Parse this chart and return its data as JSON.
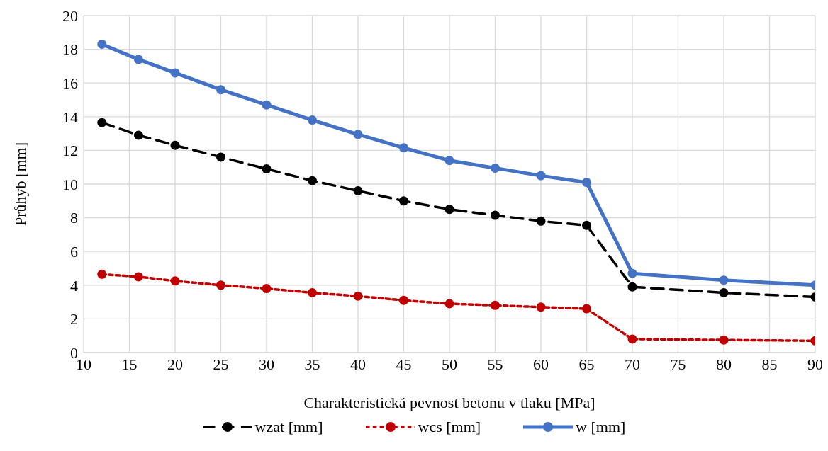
{
  "chart_data": {
    "type": "line",
    "xlabel": "Charakteristická pevnost betonu v tlaku [MPa]",
    "ylabel": "Průhyb [mm]",
    "x": [
      12,
      16,
      20,
      25,
      30,
      35,
      40,
      45,
      50,
      55,
      60,
      65,
      70,
      80,
      90
    ],
    "series": [
      {
        "name": "wzat [mm]",
        "color": "#000000",
        "line_style": "dashed",
        "values": [
          13.65,
          12.9,
          12.3,
          11.6,
          10.9,
          10.2,
          9.6,
          9.0,
          8.5,
          8.15,
          7.8,
          7.55,
          3.9,
          3.55,
          3.3
        ]
      },
      {
        "name": "wcs [mm]",
        "color": "#c00000",
        "line_style": "dotted",
        "values": [
          4.65,
          4.5,
          4.25,
          4.0,
          3.8,
          3.55,
          3.35,
          3.1,
          2.9,
          2.8,
          2.7,
          2.6,
          0.8,
          0.75,
          0.7
        ]
      },
      {
        "name": "w [mm]",
        "color": "#4472c4",
        "line_style": "solid",
        "values": [
          18.3,
          17.4,
          16.6,
          15.6,
          14.7,
          13.8,
          12.95,
          12.15,
          11.4,
          10.95,
          10.5,
          10.1,
          4.7,
          4.3,
          4.0
        ]
      }
    ],
    "xlim": [
      10,
      90
    ],
    "xticks": [
      10,
      15,
      20,
      25,
      30,
      35,
      40,
      45,
      50,
      55,
      60,
      65,
      70,
      75,
      80,
      85,
      90
    ],
    "ylim": [
      0,
      20
    ],
    "yticks": [
      0,
      2,
      4,
      6,
      8,
      10,
      12,
      14,
      16,
      18,
      20
    ],
    "grid": true,
    "legend": "bottom",
    "marker": "circle"
  }
}
